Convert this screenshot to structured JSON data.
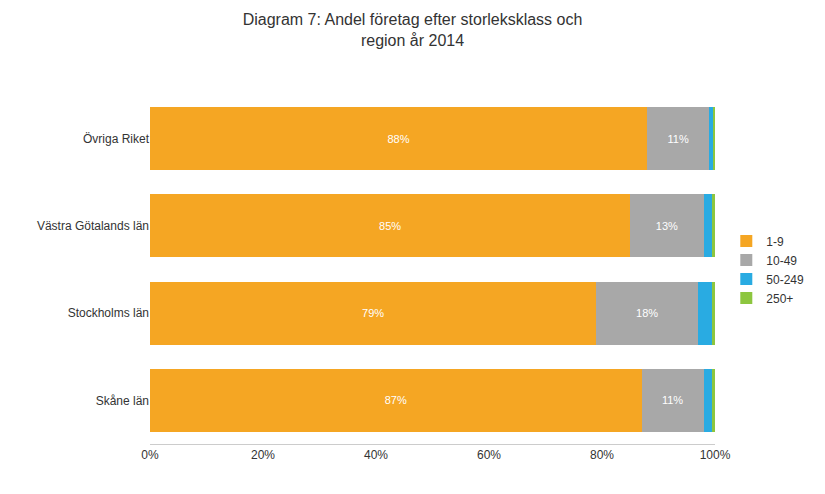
{
  "chart_data": {
    "type": "bar",
    "orientation": "horizontal",
    "stacked": true,
    "title": "Diagram 7: Andel företag efter storleksklass och\nregion år 2014",
    "categories": [
      "Skåne län",
      "Stockholms län",
      "Västra Götalands län",
      "Övriga Riket"
    ],
    "series": [
      {
        "name": "1-9",
        "color": "#F5A623",
        "values": [
          87,
          79,
          85,
          88
        ],
        "value_labels": [
          "87%",
          "79%",
          "85%",
          "88%"
        ]
      },
      {
        "name": "10-49",
        "color": "#A8A8A8",
        "values": [
          11,
          18,
          13,
          11
        ],
        "value_labels": [
          "11%",
          "18%",
          "13%",
          "11%"
        ]
      },
      {
        "name": "50-249",
        "color": "#29ABE2",
        "values": [
          1.5,
          2.5,
          1.5,
          0.7
        ]
      },
      {
        "name": "250+",
        "color": "#8DC63F",
        "values": [
          0.5,
          0.5,
          0.5,
          0.3
        ]
      }
    ],
    "xlim": [
      0,
      100
    ],
    "xticks": [
      {
        "value": 0,
        "label": "0%"
      },
      {
        "value": 20,
        "label": "20%"
      },
      {
        "value": 40,
        "label": "40%"
      },
      {
        "value": 60,
        "label": "60%"
      },
      {
        "value": 80,
        "label": "80%"
      },
      {
        "value": 100,
        "label": "100%"
      }
    ],
    "grid": false,
    "legend": "right"
  }
}
